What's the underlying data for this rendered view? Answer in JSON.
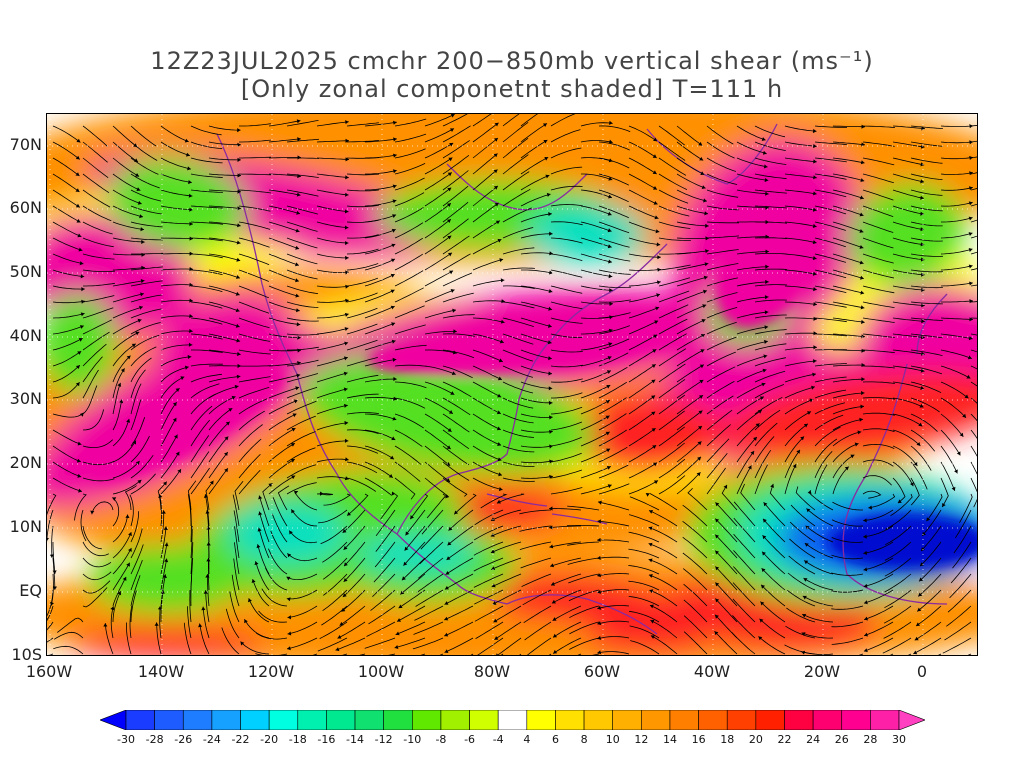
{
  "title": {
    "line1": "12Z23JUL2025 cmchr 200−850mb vertical shear (ms⁻¹)",
    "line2": "[Only zonal componetnt shaded] T=111 h"
  },
  "map": {
    "lat_labels": [
      "70N",
      "60N",
      "50N",
      "40N",
      "30N",
      "20N",
      "10N",
      "EQ",
      "10S"
    ],
    "lon_labels": [
      "160W",
      "140W",
      "120W",
      "100W",
      "80W",
      "60W",
      "40W",
      "20W",
      "0"
    ],
    "colors": {
      "magenta": "#f000a0",
      "red": "#ff2020",
      "orange": "#ff9000",
      "yellow": "#ffff00",
      "green": "#55e020",
      "cyan": "#00e0c0",
      "blue": "#1060f0",
      "darkblue": "#0010d0",
      "coast": "#8a2aa0",
      "streamline": "#000000"
    }
  },
  "colorbar": {
    "labels": [
      "-30",
      "-28",
      "-26",
      "-24",
      "-22",
      "-20",
      "-18",
      "-16",
      "-14",
      "-12",
      "-10",
      "-8",
      "-6",
      "-4",
      "4",
      "6",
      "8",
      "10",
      "12",
      "14",
      "16",
      "18",
      "20",
      "22",
      "24",
      "26",
      "28",
      "30"
    ],
    "colors": [
      "#0000ff",
      "#1a3cff",
      "#1e5cff",
      "#1e7cff",
      "#16a0ff",
      "#00d0ff",
      "#00ffe0",
      "#00f0b0",
      "#00e890",
      "#10e070",
      "#20e040",
      "#60e800",
      "#a0f000",
      "#d0ff00",
      "#ffffff",
      "#ffff00",
      "#ffe000",
      "#ffc800",
      "#ffb000",
      "#ff9800",
      "#ff8000",
      "#ff6000",
      "#ff4000",
      "#ff2000",
      "#ff0040",
      "#ff0070",
      "#ff0090",
      "#ff20a8",
      "#ff40c0"
    ]
  }
}
